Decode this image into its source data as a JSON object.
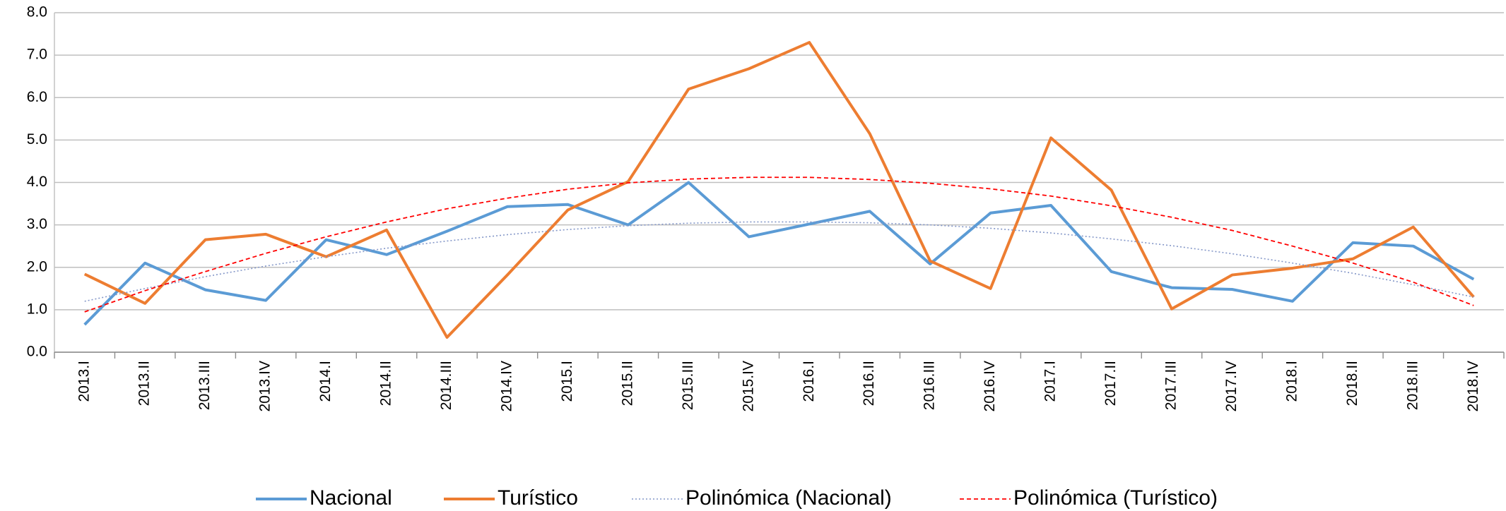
{
  "chart_data": {
    "type": "line",
    "categories": [
      "2013.I",
      "2013.II",
      "2013.III",
      "2013.IV",
      "2014.I",
      "2014.II",
      "2014.III",
      "2014.IV",
      "2015.I",
      "2015.II",
      "2015.III",
      "2015.IV",
      "2016.I",
      "2016.II",
      "2016.III",
      "2016.IV",
      "2017.I",
      "2017.II",
      "2017.III",
      "2017.IV",
      "2018.I",
      "2018.II",
      "2018.III",
      "2018.IV"
    ],
    "series": [
      {
        "name": "Nacional",
        "color": "#5b9bd5",
        "dash": "solid",
        "values": [
          0.65,
          2.1,
          1.47,
          1.22,
          2.65,
          2.3,
          2.85,
          3.43,
          3.48,
          3.0,
          4.0,
          2.72,
          3.02,
          3.32,
          2.08,
          3.28,
          3.46,
          1.9,
          1.52,
          1.48,
          1.2,
          2.58,
          2.5,
          1.72
        ]
      },
      {
        "name": "Turístico",
        "color": "#ed7d31",
        "dash": "solid",
        "values": [
          1.84,
          1.15,
          2.65,
          2.78,
          2.25,
          2.88,
          0.35,
          1.82,
          3.35,
          4.02,
          6.2,
          6.68,
          7.3,
          5.15,
          2.15,
          1.5,
          5.05,
          3.82,
          1.02,
          1.82,
          1.98,
          2.2,
          2.95,
          1.3
        ]
      },
      {
        "name": "Polinómica (Nacional)",
        "color": "#8497c8",
        "dash": "dotted",
        "values": [
          1.2,
          1.5,
          1.78,
          2.03,
          2.25,
          2.45,
          2.62,
          2.77,
          2.89,
          2.98,
          3.04,
          3.07,
          3.07,
          3.05,
          3.0,
          2.92,
          2.81,
          2.67,
          2.51,
          2.32,
          2.1,
          1.86,
          1.59,
          1.3
        ]
      },
      {
        "name": "Polinómica (Turístico)",
        "color": "#ff0000",
        "dash": "dashed",
        "values": [
          0.95,
          1.45,
          1.9,
          2.33,
          2.72,
          3.07,
          3.38,
          3.63,
          3.84,
          3.99,
          4.08,
          4.12,
          4.12,
          4.07,
          3.98,
          3.85,
          3.68,
          3.45,
          3.18,
          2.87,
          2.5,
          2.1,
          1.65,
          1.1
        ]
      }
    ],
    "ylim": [
      0,
      8
    ],
    "yticks": [
      {
        "value": 0,
        "label": "0.0"
      },
      {
        "value": 1,
        "label": "1.0"
      },
      {
        "value": 2,
        "label": "2.0"
      },
      {
        "value": 3,
        "label": "3.0"
      },
      {
        "value": 4,
        "label": "4.0"
      },
      {
        "value": 5,
        "label": "5.0"
      },
      {
        "value": 6,
        "label": "6.0"
      },
      {
        "value": 7,
        "label": "7.0"
      },
      {
        "value": 8,
        "label": "8.0"
      }
    ],
    "grid": true,
    "legend": "bottom"
  }
}
